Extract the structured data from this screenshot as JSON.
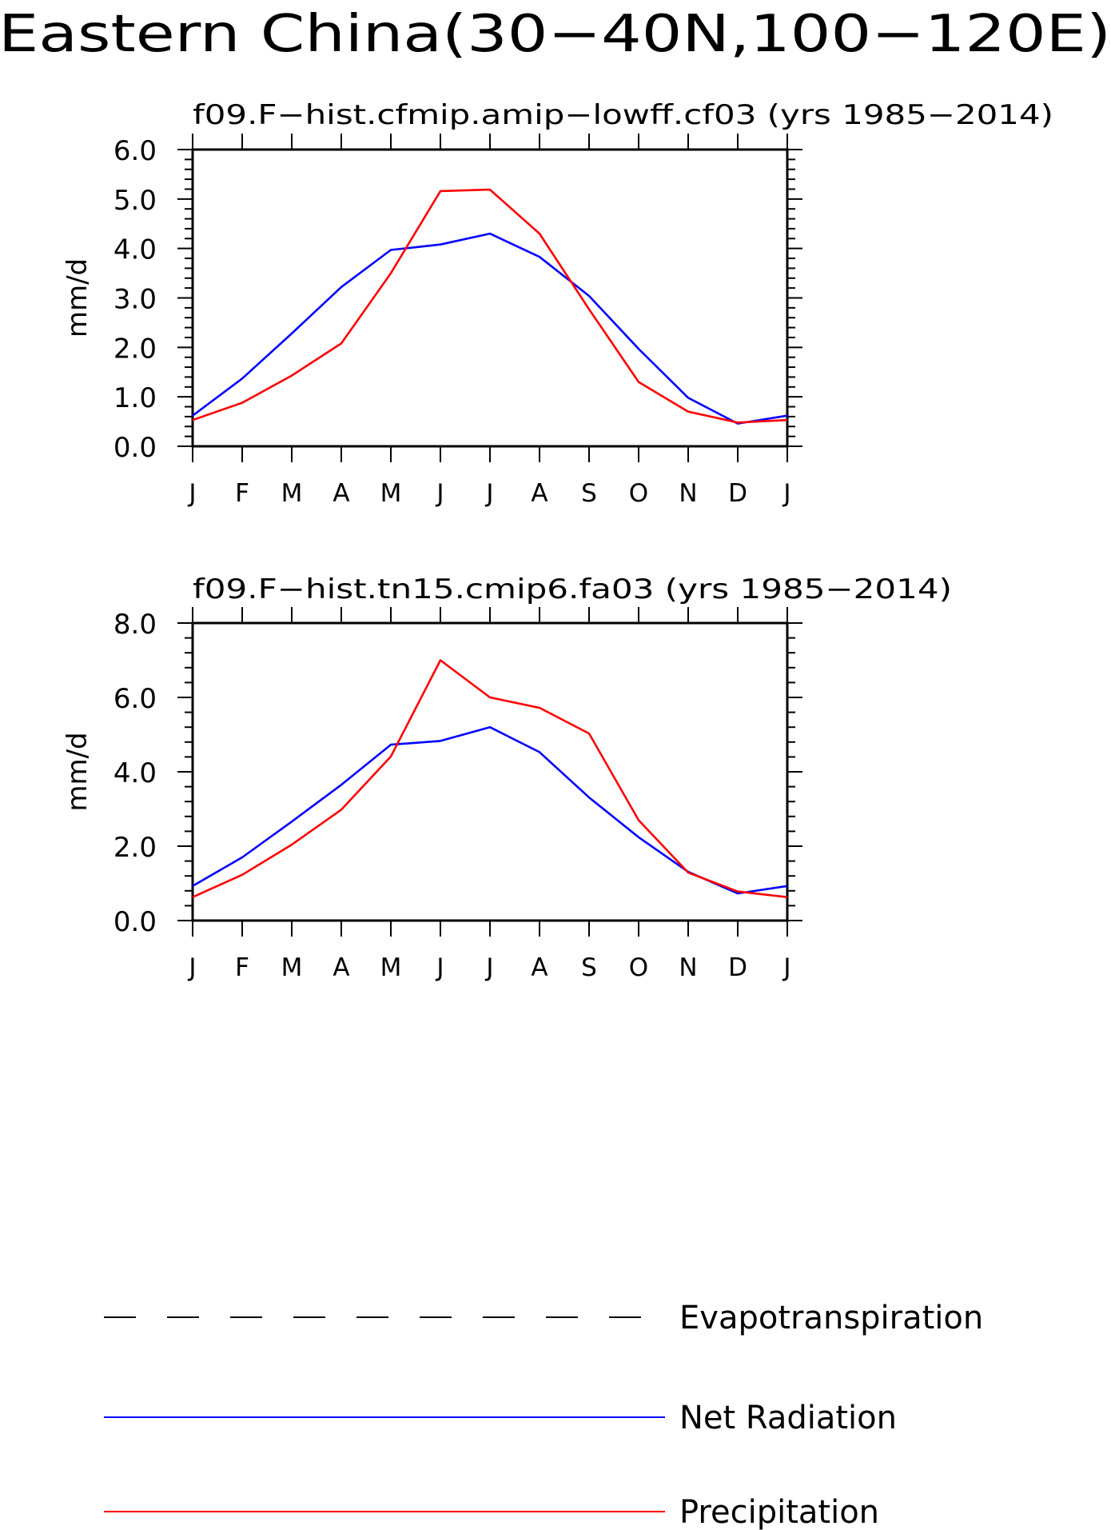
{
  "figure": {
    "title": "Eastern China(30−40N,100−120E)"
  },
  "colors": {
    "axis": "#000000",
    "net_radiation": "#0000ff",
    "precipitation": "#ff0000",
    "evapotranspiration": "#000000"
  },
  "legend": {
    "position": "bottom",
    "items": [
      {
        "label": "Evapotranspiration",
        "style": "dashed",
        "color": "#000000"
      },
      {
        "label": "Net Radiation",
        "style": "solid",
        "color": "#0000ff"
      },
      {
        "label": "Precipitation",
        "style": "solid",
        "color": "#ff0000"
      }
    ]
  },
  "chart_data": [
    {
      "type": "line",
      "title": "f09.F−hist.cfmip.amip−lowff.cf03 (yrs 1985−2014)",
      "ylabel": "mm/d",
      "xlabel": "",
      "categories": [
        "J",
        "F",
        "M",
        "A",
        "M",
        "J",
        "J",
        "A",
        "S",
        "O",
        "N",
        "D",
        "J"
      ],
      "ylim": [
        0,
        6
      ],
      "yticks": [
        "0.0",
        "1.0",
        "2.0",
        "3.0",
        "4.0",
        "5.0",
        "6.0"
      ],
      "grid": false,
      "series": [
        {
          "name": "Net Radiation",
          "color": "#0000ff",
          "values": [
            0.62,
            1.37,
            2.28,
            3.22,
            3.97,
            4.08,
            4.3,
            3.83,
            3.04,
            1.97,
            0.98,
            0.46,
            0.62
          ]
        },
        {
          "name": "Precipitation",
          "color": "#ff0000",
          "values": [
            0.53,
            0.88,
            1.43,
            2.08,
            3.5,
            5.16,
            5.19,
            4.3,
            2.77,
            1.3,
            0.7,
            0.48,
            0.53
          ]
        }
      ]
    },
    {
      "type": "line",
      "title": "f09.F−hist.tn15.cmip6.fa03 (yrs 1985−2014)",
      "ylabel": "mm/d",
      "xlabel": "",
      "categories": [
        "J",
        "F",
        "M",
        "A",
        "M",
        "J",
        "J",
        "A",
        "S",
        "O",
        "N",
        "D",
        "J"
      ],
      "ylim": [
        0,
        8
      ],
      "yticks": [
        "0.0",
        "2.0",
        "4.0",
        "6.0",
        "8.0"
      ],
      "grid": false,
      "series": [
        {
          "name": "Net Radiation",
          "color": "#0000ff",
          "values": [
            0.93,
            1.7,
            2.66,
            3.65,
            4.73,
            4.83,
            5.2,
            4.53,
            3.31,
            2.24,
            1.31,
            0.73,
            0.93
          ]
        },
        {
          "name": "Precipitation",
          "color": "#ff0000",
          "values": [
            0.63,
            1.23,
            2.04,
            2.98,
            4.41,
            7.0,
            6.0,
            5.72,
            5.03,
            2.7,
            1.29,
            0.78,
            0.63
          ]
        }
      ]
    }
  ]
}
